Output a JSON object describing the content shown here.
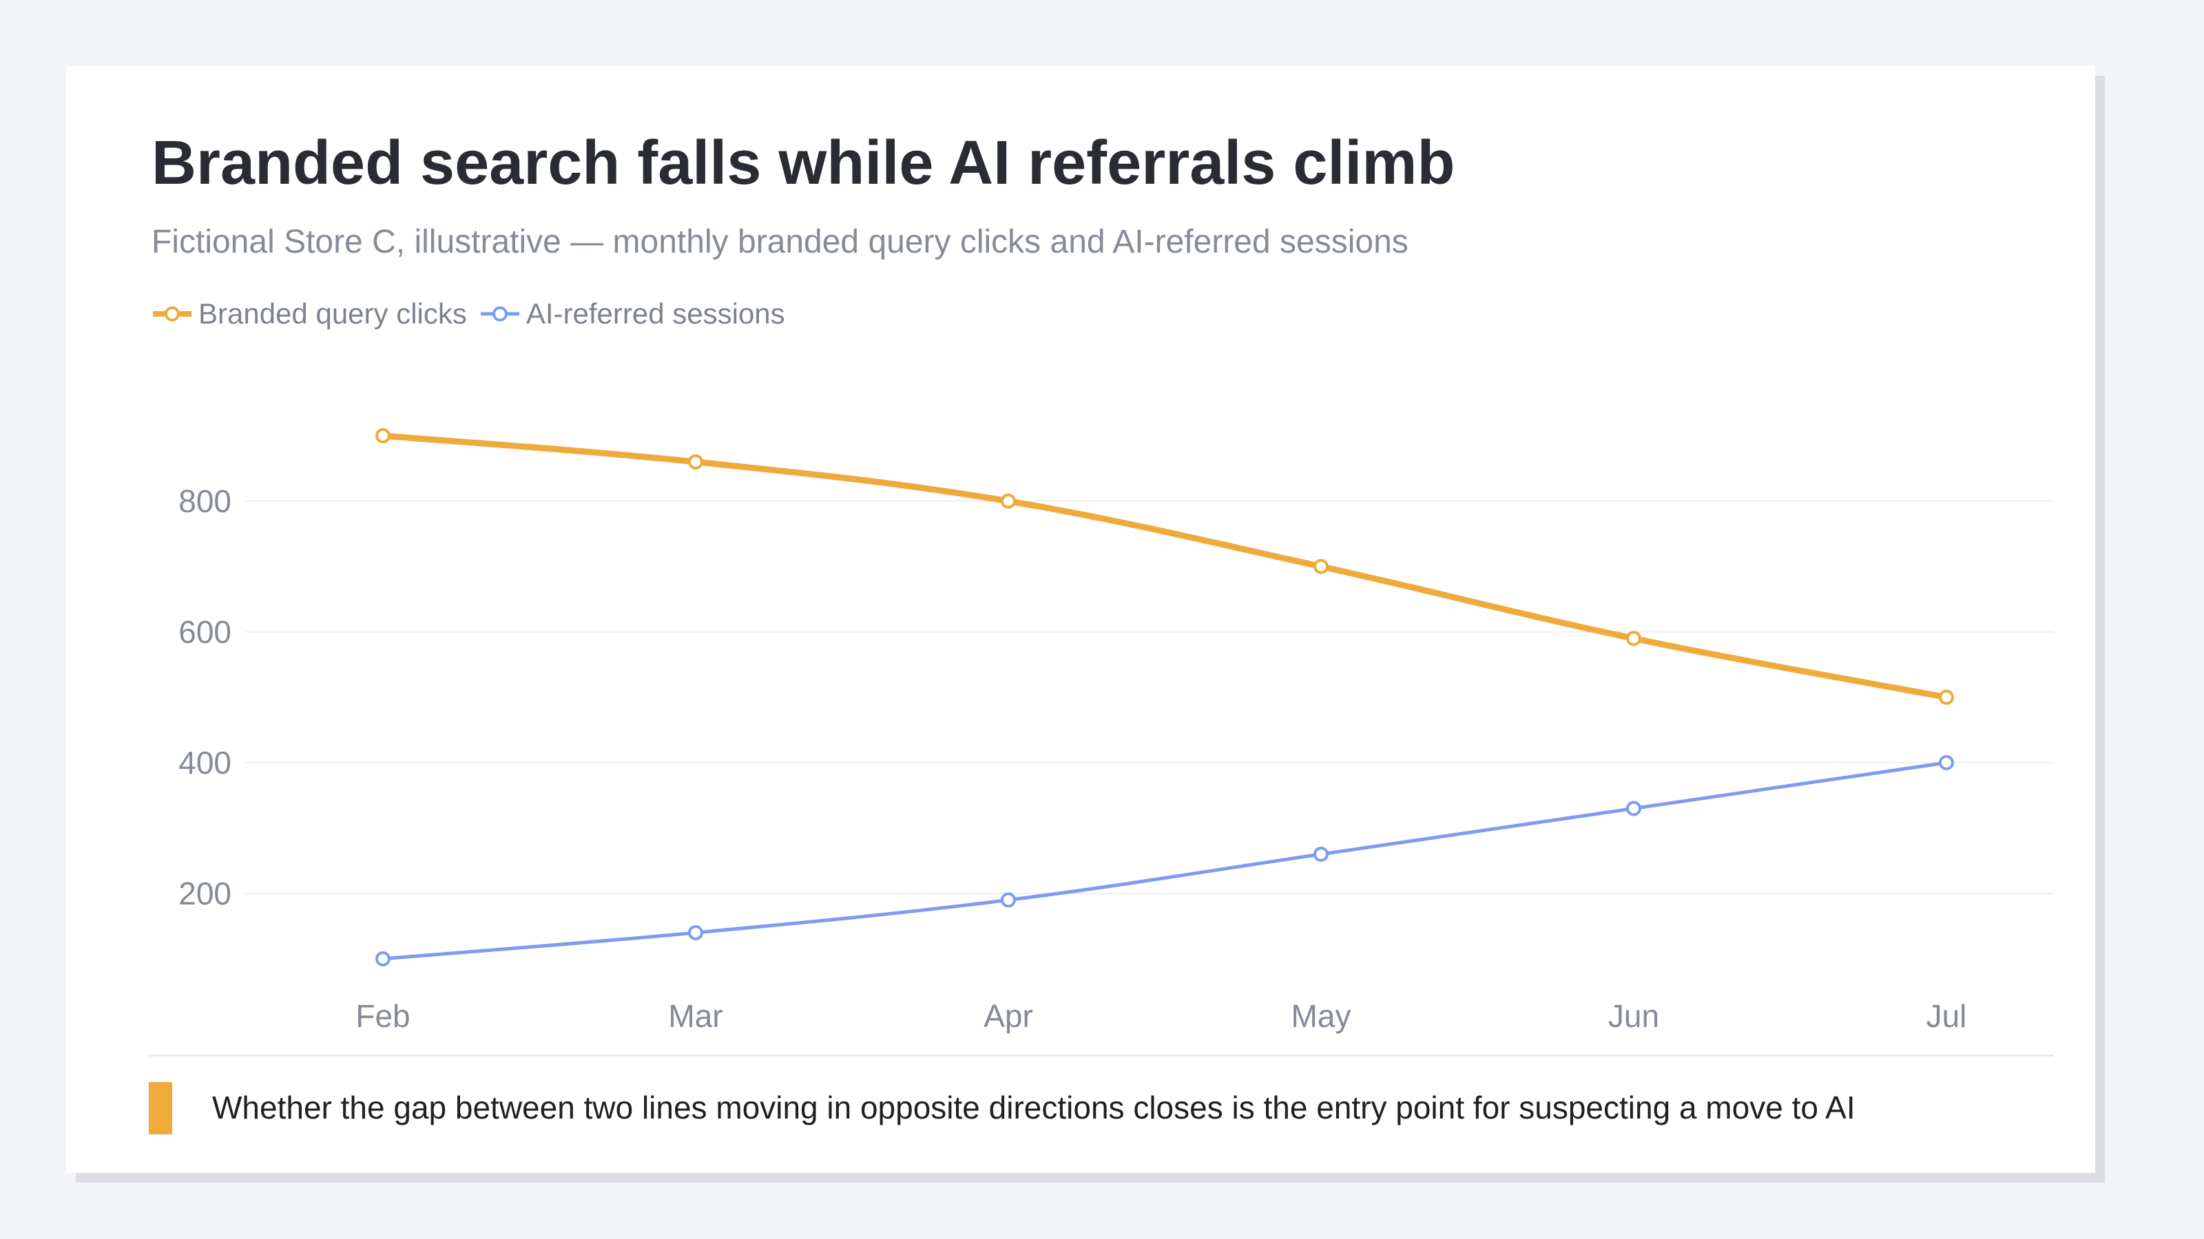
{
  "chart_data": {
    "type": "line",
    "title": "Branded search falls while AI referrals climb",
    "subtitle": "Fictional Store C, illustrative — monthly branded query clicks and AI-referred sessions",
    "categories": [
      "Feb",
      "Mar",
      "Apr",
      "May",
      "Jun",
      "Jul"
    ],
    "series": [
      {
        "name": "Branded query clicks",
        "color": "#f0a93b",
        "values": [
          900,
          860,
          800,
          700,
          590,
          500
        ]
      },
      {
        "name": "AI-referred sessions",
        "color": "#7e9bef",
        "values": [
          100,
          140,
          190,
          260,
          330,
          400
        ]
      }
    ],
    "yticks": [
      200,
      400,
      600,
      800
    ],
    "ylim": [
      0,
      1000
    ],
    "xlabel": "",
    "ylabel": "",
    "grid": true,
    "legend": "top-left",
    "annotation": "Whether the gap between two lines moving in opposite directions closes is the entry point for suspecting a move to AI",
    "annotation_color": "#f0a93b"
  }
}
